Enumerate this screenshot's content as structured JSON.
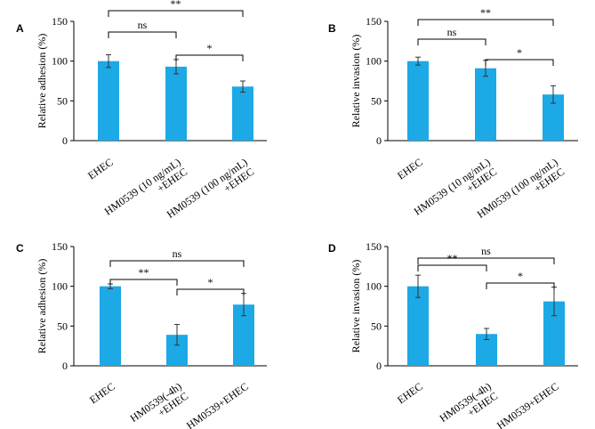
{
  "chart_data": [
    {
      "type": "bar",
      "panel_label": "A",
      "ylabel": "Relative adhesion (%)",
      "ylim": [
        0,
        150
      ],
      "yticks": [
        "0",
        "50",
        "100",
        "150"
      ],
      "categories": [
        [
          "EHEC"
        ],
        [
          "HM0539 (10 ng/mL)",
          "+EHEC"
        ],
        [
          "HM0539 (100 ng/mL)",
          "+EHEC"
        ]
      ],
      "values": [
        100,
        93,
        68
      ],
      "errors": [
        8,
        9,
        7
      ],
      "bar_color": "#1CA9E6",
      "brackets": [
        {
          "from": 0,
          "to": 2,
          "label": "**"
        },
        {
          "from": 0,
          "to": 1,
          "label": "ns"
        },
        {
          "from": 1,
          "to": 2,
          "label": "*"
        }
      ]
    },
    {
      "type": "bar",
      "panel_label": "B",
      "ylabel": "Relative invasion (%)",
      "ylim": [
        0,
        150
      ],
      "yticks": [
        "0",
        "50",
        "100",
        "150"
      ],
      "categories": [
        [
          "EHEC"
        ],
        [
          "HM0539 (10 ng/mL)",
          "+EHEC"
        ],
        [
          "HM0539 (100 ng/mL)",
          "+EHEC"
        ]
      ],
      "values": [
        100,
        91,
        58
      ],
      "errors": [
        5,
        10,
        11
      ],
      "bar_color": "#1CA9E6",
      "brackets": [
        {
          "from": 0,
          "to": 2,
          "label": "**"
        },
        {
          "from": 0,
          "to": 1,
          "label": "ns"
        },
        {
          "from": 1,
          "to": 2,
          "label": "*"
        }
      ]
    },
    {
      "type": "bar",
      "panel_label": "C",
      "ylabel": "Relative adhesion (%)",
      "ylim": [
        0,
        150
      ],
      "yticks": [
        "0",
        "50",
        "100",
        "150"
      ],
      "categories": [
        [
          "EHEC"
        ],
        [
          "HM0539(-4h)",
          "+EHEC"
        ],
        [
          "HM0539+EHEC"
        ]
      ],
      "values": [
        100,
        39,
        77
      ],
      "errors": [
        3,
        13,
        14
      ],
      "bar_color": "#1CA9E6",
      "brackets": [
        {
          "from": 0,
          "to": 2,
          "label": "ns"
        },
        {
          "from": 0,
          "to": 1,
          "label": "**"
        },
        {
          "from": 1,
          "to": 2,
          "label": "*"
        }
      ]
    },
    {
      "type": "bar",
      "panel_label": "D",
      "ylabel": "Relative invasion (%)",
      "ylim": [
        0,
        150
      ],
      "yticks": [
        "0",
        "50",
        "100",
        "150"
      ],
      "categories": [
        [
          "EHEC"
        ],
        [
          "HM0539(-4h)",
          "+EHEC"
        ],
        [
          "HM0539+EHEC"
        ]
      ],
      "values": [
        100,
        40,
        81
      ],
      "errors": [
        14,
        7,
        18
      ],
      "bar_color": "#1CA9E6",
      "brackets": [
        {
          "from": 0,
          "to": 2,
          "label": "ns"
        },
        {
          "from": 0,
          "to": 1,
          "label": "**"
        },
        {
          "from": 1,
          "to": 2,
          "label": "*"
        }
      ]
    }
  ]
}
